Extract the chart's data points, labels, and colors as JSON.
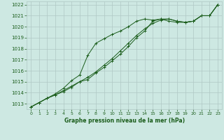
{
  "title": "Graphe pression niveau de la mer (hPa)",
  "background_color": "#cde8e2",
  "grid_color": "#b0c8c4",
  "line_color": "#1a5c1a",
  "x_ticks": [
    0,
    1,
    2,
    3,
    4,
    5,
    6,
    7,
    8,
    9,
    10,
    11,
    12,
    13,
    14,
    15,
    16,
    17,
    18,
    19,
    20,
    21,
    22,
    23
  ],
  "y_ticks": [
    1013,
    1014,
    1015,
    1016,
    1017,
    1018,
    1019,
    1020,
    1021,
    1022
  ],
  "ylim": [
    1012.5,
    1022.3
  ],
  "xlim": [
    -0.5,
    23.5
  ],
  "series1": [
    1012.7,
    1013.1,
    1013.5,
    1013.8,
    1014.1,
    1014.5,
    1015.0,
    1015.2,
    1015.8,
    1016.3,
    1016.9,
    1017.5,
    1018.2,
    1019.0,
    1019.6,
    1020.5,
    1020.7,
    1020.7,
    1020.5,
    1020.4,
    1020.5,
    1021.0,
    1021.0,
    1022.0
  ],
  "series2": [
    1012.7,
    1013.1,
    1013.5,
    1013.8,
    1014.2,
    1014.6,
    1015.0,
    1015.4,
    1015.9,
    1016.5,
    1017.1,
    1017.8,
    1018.5,
    1019.2,
    1019.8,
    1020.3,
    1020.6,
    1020.7,
    1020.5,
    1020.4,
    1020.5,
    1021.0,
    1021.0,
    1022.0
  ],
  "series3": [
    1012.7,
    1013.1,
    1013.5,
    1013.9,
    1014.4,
    1015.1,
    1015.6,
    1017.4,
    1018.5,
    1018.9,
    1019.3,
    1019.6,
    1020.0,
    1020.5,
    1020.7,
    1020.6,
    1020.7,
    1020.5,
    1020.4,
    1020.4,
    1020.5,
    1021.0,
    1021.0,
    1022.0
  ]
}
